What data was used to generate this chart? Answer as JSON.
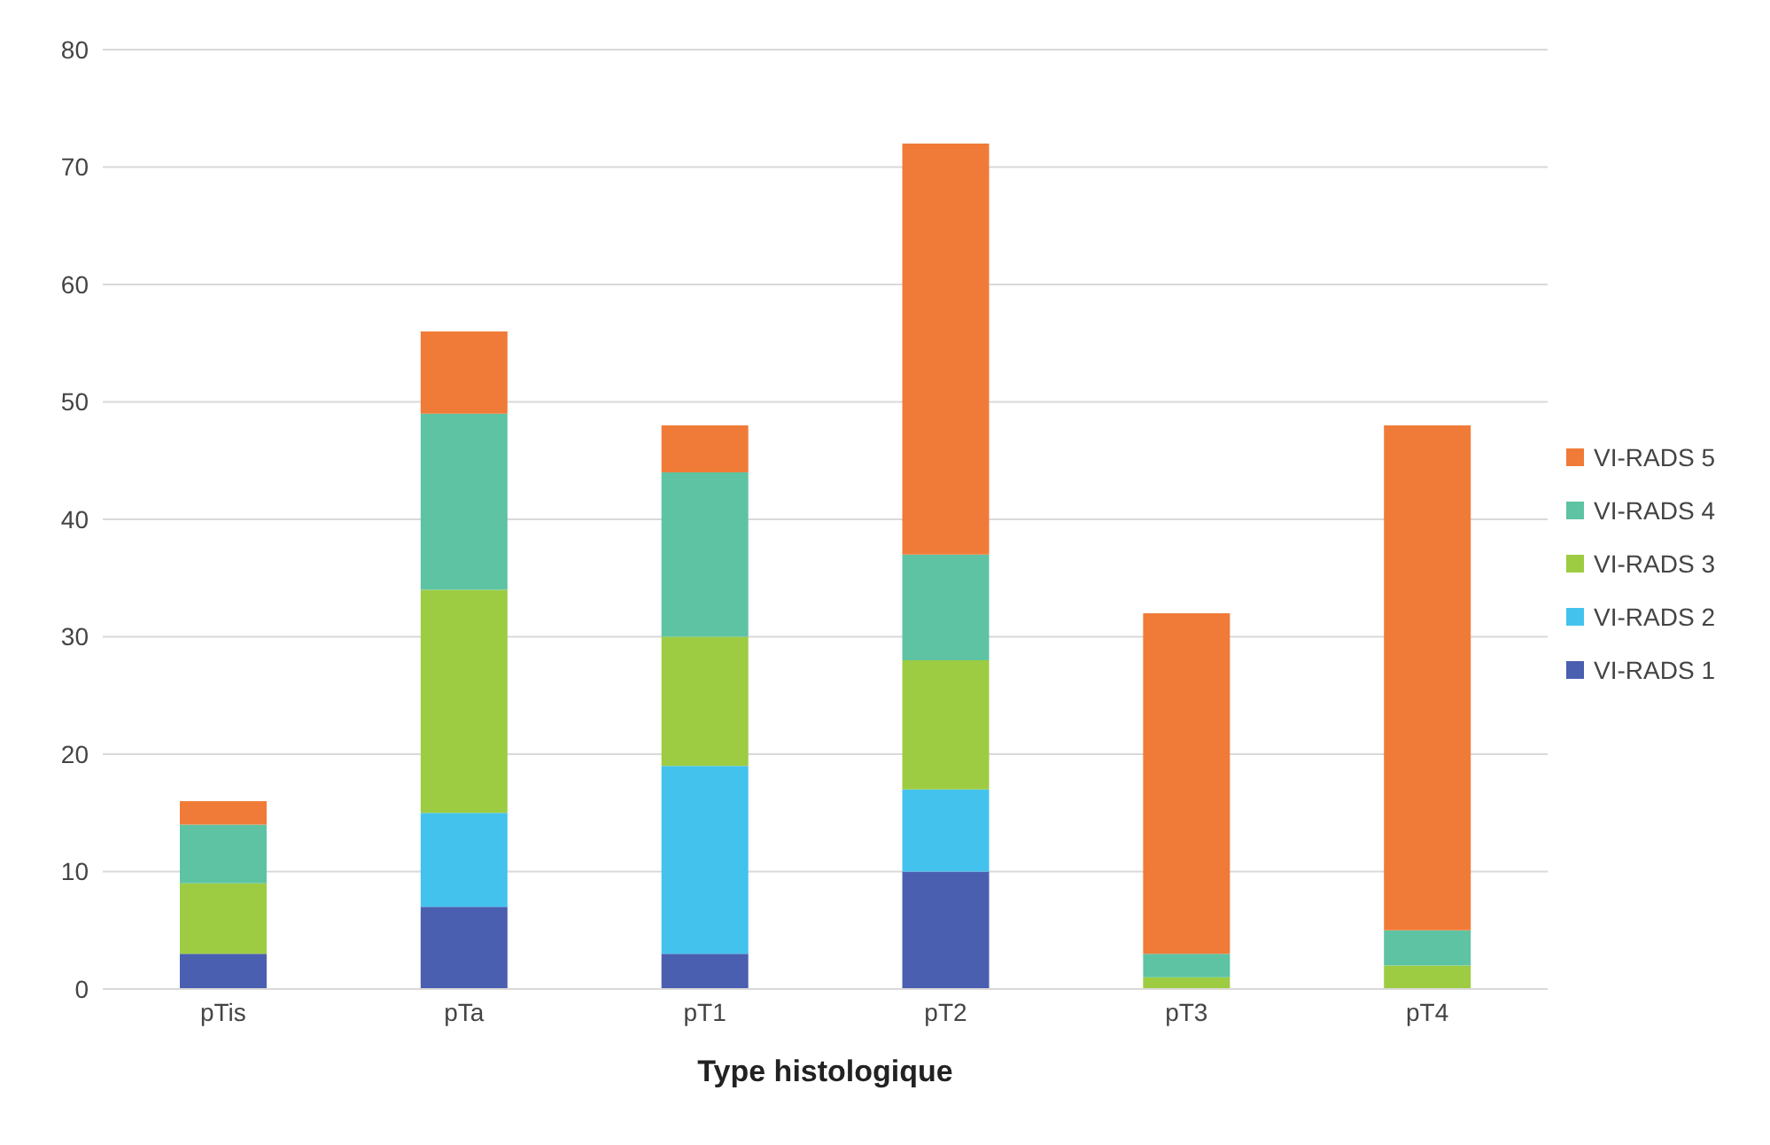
{
  "chart_data": {
    "type": "bar",
    "xlabel": "Type histologique",
    "categories": [
      "pTis",
      "pTa",
      "pT1",
      "pT2",
      "pT3",
      "pT4"
    ],
    "stacked": true,
    "ylim": [
      0,
      80
    ],
    "yticks": [
      0,
      10,
      20,
      30,
      40,
      50,
      60,
      70,
      80
    ],
    "grid": "y",
    "legend": "right",
    "series": [
      {
        "name": "VI-RADS 1",
        "color": "#4a5fb0",
        "values": [
          3,
          7,
          3,
          10,
          0,
          0
        ]
      },
      {
        "name": "VI-RADS 2",
        "color": "#44c2ee",
        "values": [
          0,
          8,
          16,
          7,
          0,
          0
        ]
      },
      {
        "name": "VI-RADS 3",
        "color": "#9dcc42",
        "values": [
          6,
          19,
          11,
          11,
          1,
          2
        ]
      },
      {
        "name": "VI-RADS 4",
        "color": "#5ec3a2",
        "values": [
          5,
          15,
          14,
          9,
          2,
          3
        ]
      },
      {
        "name": "VI-RADS 5",
        "color": "#f07b38",
        "values": [
          2,
          7,
          4,
          35,
          29,
          43
        ]
      }
    ]
  }
}
